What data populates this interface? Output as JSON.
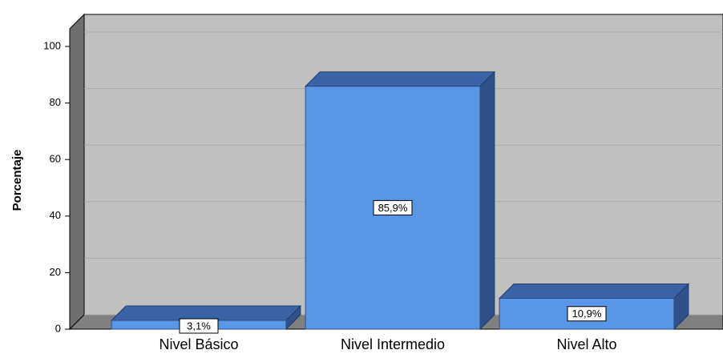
{
  "chart_data": {
    "type": "bar3d",
    "ylabel": "Porcentaje",
    "categories": [
      "Nivel Básico",
      "Nivel Intermedio",
      "Nivel Alto"
    ],
    "values": [
      3.1,
      85.9,
      10.9
    ],
    "value_labels": [
      "3,1%",
      "85,9%",
      "10,9%"
    ],
    "color": "#5a96e6",
    "ylim": [
      0,
      100
    ],
    "yticks": [
      0,
      20,
      40,
      60,
      80,
      100
    ],
    "grid": true
  }
}
